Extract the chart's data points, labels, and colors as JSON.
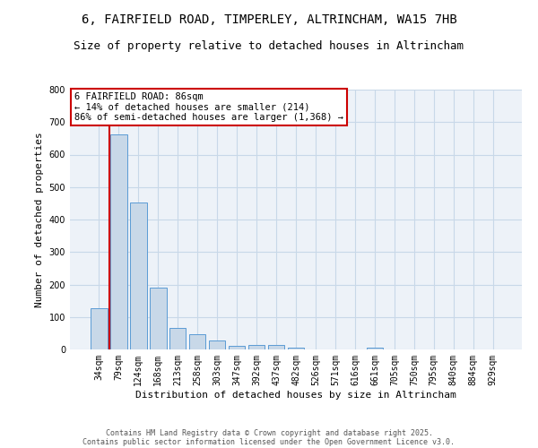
{
  "title_line1": "6, FAIRFIELD ROAD, TIMPERLEY, ALTRINCHAM, WA15 7HB",
  "title_line2": "Size of property relative to detached houses in Altrincham",
  "xlabel": "Distribution of detached houses by size in Altrincham",
  "ylabel": "Number of detached properties",
  "categories": [
    "34sqm",
    "79sqm",
    "124sqm",
    "168sqm",
    "213sqm",
    "258sqm",
    "303sqm",
    "347sqm",
    "392sqm",
    "437sqm",
    "482sqm",
    "526sqm",
    "571sqm",
    "616sqm",
    "661sqm",
    "705sqm",
    "750sqm",
    "795sqm",
    "840sqm",
    "884sqm",
    "929sqm"
  ],
  "values": [
    128,
    662,
    452,
    190,
    65,
    48,
    27,
    12,
    13,
    13,
    6,
    0,
    0,
    0,
    6,
    0,
    0,
    0,
    0,
    0,
    0
  ],
  "bar_color": "#c8d8e8",
  "bar_edge_color": "#5b9bd5",
  "vline_color": "#cc0000",
  "vline_x": 0.57,
  "annotation_text": "6 FAIRFIELD ROAD: 86sqm\n← 14% of detached houses are smaller (214)\n86% of semi-detached houses are larger (1,368) →",
  "annotation_box_color": "#ffffff",
  "annotation_box_edge_color": "#cc0000",
  "ylim": [
    0,
    800
  ],
  "yticks": [
    0,
    100,
    200,
    300,
    400,
    500,
    600,
    700,
    800
  ],
  "grid_color": "#c8d8e8",
  "background_color": "#edf2f8",
  "footer_line1": "Contains HM Land Registry data © Crown copyright and database right 2025.",
  "footer_line2": "Contains public sector information licensed under the Open Government Licence v3.0.",
  "title_fontsize": 10,
  "subtitle_fontsize": 9,
  "tick_fontsize": 7,
  "axis_label_fontsize": 8,
  "annotation_fontsize": 7.5,
  "footer_fontsize": 6
}
